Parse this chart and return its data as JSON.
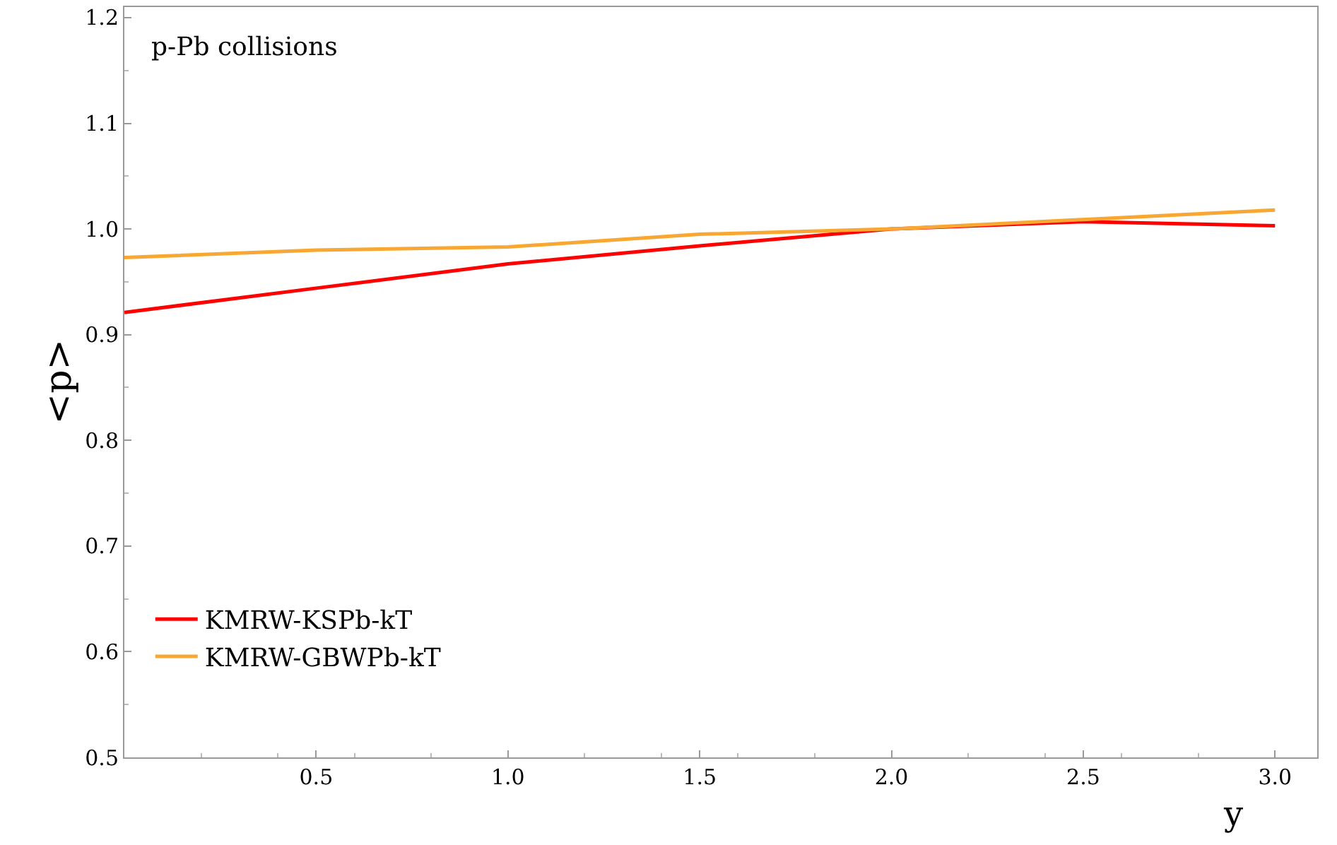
{
  "chart_data": {
    "type": "line",
    "xlabel": "y",
    "ylabel": "<p>",
    "annotations": [
      "p-Pb collisions"
    ],
    "x": [
      0,
      0.5,
      1.0,
      1.5,
      2.0,
      2.5,
      3.0
    ],
    "series": [
      {
        "name": "KMRW-KSPb-kT",
        "color": "#ff0000",
        "values": [
          0.921,
          0.944,
          0.967,
          0.984,
          1.0,
          1.007,
          1.003
        ]
      },
      {
        "name": "KMRW-GBWPb-kT",
        "color": "#f8a832",
        "values": [
          0.973,
          0.98,
          0.983,
          0.995,
          1.0,
          1.009,
          1.018
        ]
      }
    ],
    "xlim": [
      0,
      3.11
    ],
    "ylim": [
      0.5,
      1.21
    ],
    "xticks": [
      0.5,
      {
        "value": 1,
        "label": "1.0"
      },
      1.5,
      {
        "value": 2,
        "label": "2.0"
      },
      2.5,
      {
        "value": 3,
        "label": "3.0"
      }
    ],
    "yticks": [
      0.5,
      0.6,
      0.7,
      0.8,
      0.9,
      {
        "value": 1,
        "label": "1.0"
      },
      1.1,
      1.2
    ],
    "legend": "bottom left",
    "marker": "none",
    "line_style": "solid"
  }
}
